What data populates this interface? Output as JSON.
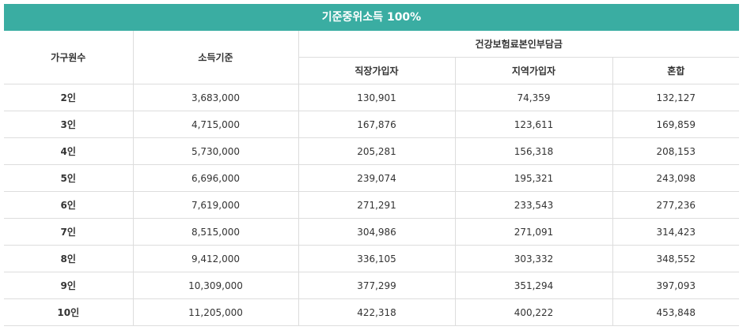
{
  "title": "기준중위소득 100%",
  "headers": {
    "household": "가구원수",
    "income": "소득기준",
    "group": "건강보험료본인부담금",
    "workplace": "직장가입자",
    "regional": "지역가입자",
    "mixed": "혼합"
  },
  "rows": [
    {
      "size": "2인",
      "income": "3,683,000",
      "workplace": "130,901",
      "regional": "74,359",
      "mixed": "132,127"
    },
    {
      "size": "3인",
      "income": "4,715,000",
      "workplace": "167,876",
      "regional": "123,611",
      "mixed": "169,859"
    },
    {
      "size": "4인",
      "income": "5,730,000",
      "workplace": "205,281",
      "regional": "156,318",
      "mixed": "208,153"
    },
    {
      "size": "5인",
      "income": "6,696,000",
      "workplace": "239,074",
      "regional": "195,321",
      "mixed": "243,098"
    },
    {
      "size": "6인",
      "income": "7,619,000",
      "workplace": "271,291",
      "regional": "233,543",
      "mixed": "277,236"
    },
    {
      "size": "7인",
      "income": "8,515,000",
      "workplace": "304,986",
      "regional": "271,091",
      "mixed": "314,423"
    },
    {
      "size": "8인",
      "income": "9,412,000",
      "workplace": "336,105",
      "regional": "303,332",
      "mixed": "348,552"
    },
    {
      "size": "9인",
      "income": "10,309,000",
      "workplace": "377,299",
      "regional": "351,294",
      "mixed": "397,093"
    },
    {
      "size": "10인",
      "income": "11,205,000",
      "workplace": "422,318",
      "regional": "400,222",
      "mixed": "453,848"
    }
  ]
}
